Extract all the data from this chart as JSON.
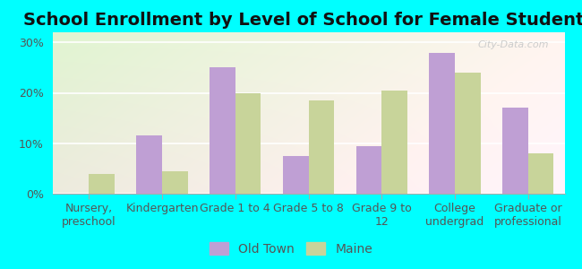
{
  "title": "School Enrollment by Level of School for Female Students",
  "categories": [
    "Nursery,\npreschool",
    "Kindergarten",
    "Grade 1 to 4",
    "Grade 5 to 8",
    "Grade 9 to\n12",
    "College\nundergrad",
    "Graduate or\nprofessional"
  ],
  "old_town": [
    0.0,
    11.5,
    25.0,
    7.5,
    9.5,
    28.0,
    17.0
  ],
  "maine": [
    4.0,
    4.5,
    20.0,
    18.5,
    20.5,
    24.0,
    8.0
  ],
  "old_town_color": "#bf9fd4",
  "maine_color": "#c8d49a",
  "bar_width": 0.35,
  "ylim": [
    0,
    32
  ],
  "yticks": [
    0,
    10,
    20,
    30
  ],
  "yticklabels": [
    "0%",
    "10%",
    "20%",
    "30%"
  ],
  "background_color": "#00ffff",
  "legend_labels": [
    "Old Town",
    "Maine"
  ],
  "watermark": "City-Data.com",
  "title_fontsize": 14,
  "tick_fontsize": 9,
  "legend_fontsize": 10
}
